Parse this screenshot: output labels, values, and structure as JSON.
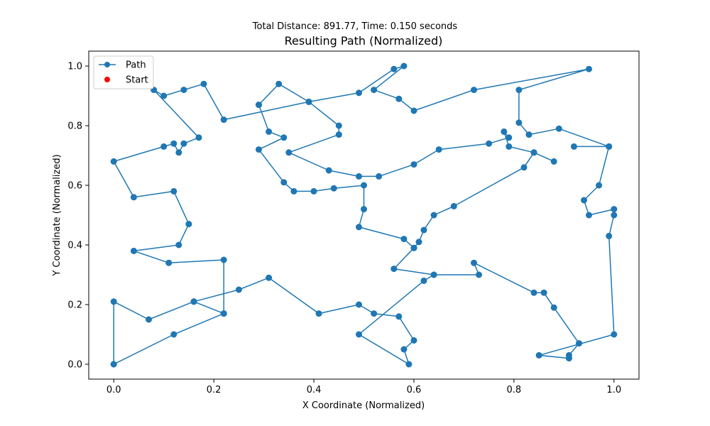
{
  "chart_data": {
    "type": "line",
    "subtitle": "Total Distance: 891.77, Time: 0.150 seconds",
    "title": "Resulting Path (Normalized)",
    "xlabel": "X Coordinate (Normalized)",
    "ylabel": "Y Coordinate (Normalized)",
    "xlim": [
      -0.05,
      1.05
    ],
    "ylim": [
      -0.05,
      1.05
    ],
    "xticks": [
      0.0,
      0.2,
      0.4,
      0.6,
      0.8,
      1.0
    ],
    "yticks": [
      0.0,
      0.2,
      0.4,
      0.6,
      0.8,
      1.0
    ],
    "tick_labels_x": [
      "0.0",
      "0.2",
      "0.4",
      "0.6",
      "0.8",
      "1.0"
    ],
    "tick_labels_y": [
      "0.0",
      "0.2",
      "0.4",
      "0.6",
      "0.8",
      "1.0"
    ],
    "grid": false,
    "legend_position": "top-left",
    "series": [
      {
        "name": "Path",
        "color": "#1f77b4",
        "marker": "circle",
        "points": [
          [
            0.0,
            0.0
          ],
          [
            0.0,
            0.21
          ],
          [
            0.07,
            0.15
          ],
          [
            0.16,
            0.21
          ],
          [
            0.22,
            0.17
          ],
          [
            0.16,
            0.21
          ],
          [
            0.25,
            0.25
          ],
          [
            0.31,
            0.29
          ],
          [
            0.41,
            0.17
          ],
          [
            0.49,
            0.2
          ],
          [
            0.52,
            0.17
          ],
          [
            0.57,
            0.16
          ],
          [
            0.6,
            0.08
          ],
          [
            0.58,
            0.05
          ],
          [
            0.59,
            0.0
          ],
          [
            0.49,
            0.1
          ],
          [
            0.62,
            0.28
          ],
          [
            0.64,
            0.3
          ],
          [
            0.73,
            0.3
          ],
          [
            0.72,
            0.34
          ],
          [
            0.84,
            0.24
          ],
          [
            0.86,
            0.24
          ],
          [
            0.88,
            0.19
          ],
          [
            0.93,
            0.07
          ],
          [
            0.91,
            0.03
          ],
          [
            0.91,
            0.02
          ],
          [
            0.85,
            0.03
          ],
          [
            1.0,
            0.1
          ],
          [
            0.99,
            0.43
          ],
          [
            1.0,
            0.5
          ],
          [
            1.0,
            0.52
          ],
          [
            0.95,
            0.5
          ],
          [
            0.94,
            0.55
          ],
          [
            0.97,
            0.6
          ],
          [
            0.99,
            0.73
          ],
          [
            0.92,
            0.73
          ],
          [
            0.99,
            0.73
          ],
          [
            0.89,
            0.79
          ],
          [
            0.83,
            0.77
          ],
          [
            0.81,
            0.81
          ],
          [
            0.81,
            0.92
          ],
          [
            0.95,
            0.99
          ],
          [
            0.72,
            0.92
          ],
          [
            0.6,
            0.85
          ],
          [
            0.57,
            0.89
          ],
          [
            0.52,
            0.92
          ],
          [
            0.58,
            1.0
          ],
          [
            0.56,
            0.99
          ],
          [
            0.49,
            0.91
          ],
          [
            0.39,
            0.88
          ],
          [
            0.22,
            0.82
          ],
          [
            0.18,
            0.94
          ],
          [
            0.14,
            0.92
          ],
          [
            0.1,
            0.9
          ],
          [
            0.08,
            0.92
          ],
          [
            0.17,
            0.76
          ],
          [
            0.14,
            0.74
          ],
          [
            0.13,
            0.71
          ],
          [
            0.12,
            0.74
          ],
          [
            0.1,
            0.73
          ],
          [
            0.0,
            0.68
          ],
          [
            0.04,
            0.56
          ],
          [
            0.12,
            0.58
          ],
          [
            0.15,
            0.47
          ],
          [
            0.13,
            0.4
          ],
          [
            0.04,
            0.38
          ],
          [
            0.11,
            0.34
          ],
          [
            0.22,
            0.35
          ],
          [
            0.22,
            0.17
          ]
        ],
        "tail": [
          [
            0.12,
            0.1
          ],
          [
            0.0,
            0.0
          ]
        ]
      }
    ],
    "segments_second_series": [
      [
        0.29,
        0.87
      ],
      [
        0.33,
        0.94
      ],
      [
        0.39,
        0.88
      ],
      [
        0.45,
        0.8
      ],
      [
        0.45,
        0.77
      ],
      [
        0.35,
        0.71
      ],
      [
        0.43,
        0.65
      ],
      [
        0.49,
        0.63
      ],
      [
        0.53,
        0.63
      ],
      [
        0.6,
        0.67
      ],
      [
        0.65,
        0.72
      ],
      [
        0.75,
        0.74
      ],
      [
        0.79,
        0.76
      ],
      [
        0.78,
        0.78
      ],
      [
        0.79,
        0.73
      ],
      [
        0.84,
        0.71
      ],
      [
        0.88,
        0.68
      ],
      [
        0.84,
        0.71
      ],
      [
        0.82,
        0.66
      ],
      [
        0.68,
        0.53
      ],
      [
        0.64,
        0.5
      ],
      [
        0.62,
        0.45
      ],
      [
        0.61,
        0.41
      ],
      [
        0.6,
        0.39
      ],
      [
        0.56,
        0.32
      ],
      [
        0.64,
        0.3
      ]
    ],
    "segments_third_series": [
      [
        0.29,
        0.87
      ],
      [
        0.31,
        0.78
      ],
      [
        0.34,
        0.76
      ],
      [
        0.29,
        0.72
      ],
      [
        0.34,
        0.61
      ],
      [
        0.36,
        0.58
      ],
      [
        0.4,
        0.58
      ],
      [
        0.44,
        0.59
      ],
      [
        0.5,
        0.6
      ],
      [
        0.5,
        0.52
      ],
      [
        0.49,
        0.46
      ],
      [
        0.58,
        0.42
      ],
      [
        0.6,
        0.39
      ]
    ],
    "legend": [
      {
        "label": "Path",
        "color": "#1f77b4",
        "type": "line-marker"
      },
      {
        "label": "Start",
        "color": "#ff0000",
        "type": "marker"
      }
    ]
  }
}
